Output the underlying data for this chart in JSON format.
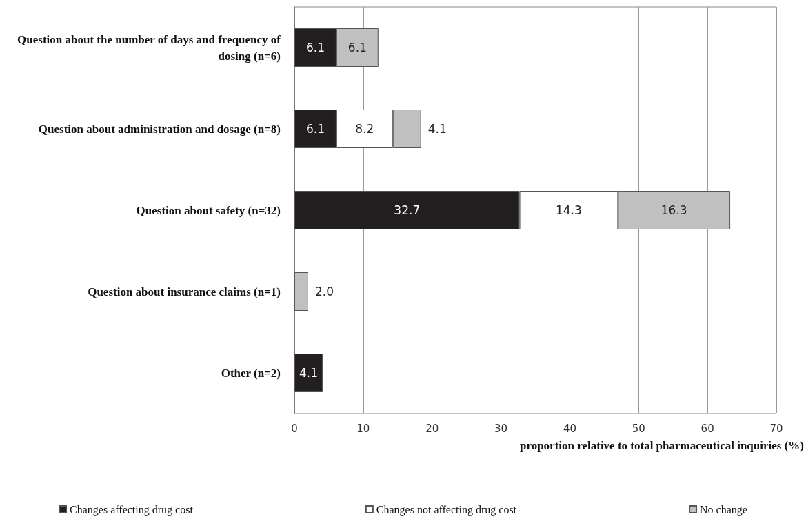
{
  "chart_data": {
    "type": "bar",
    "orientation": "horizontal",
    "stacked": true,
    "categories": [
      "Question about the number of days and frequency of dosing (n=6)",
      "Question about administration and dosage (n=8)",
      "Question about safety (n=32)",
      "Question about insurance claims (n=1)",
      "Other (n=2)"
    ],
    "series": [
      {
        "name": "Changes affecting drug cost",
        "color": "#231f20",
        "values": [
          6.1,
          6.1,
          32.7,
          null,
          4.1
        ],
        "value_labels": [
          "6.1",
          "6.1",
          "32.7",
          null,
          "4.1"
        ]
      },
      {
        "name": "Changes not affecting drug cost",
        "color": "#ffffff",
        "values": [
          null,
          8.2,
          14.3,
          null,
          null
        ],
        "value_labels": [
          null,
          "8.2",
          "14.3",
          null,
          null
        ]
      },
      {
        "name": "No change",
        "color": "#c0c0c0",
        "values": [
          6.1,
          4.1,
          16.3,
          2.0,
          null
        ],
        "value_labels": [
          "6.1",
          "4.1",
          "16.3",
          "2.0",
          null
        ]
      }
    ],
    "xlabel": "proportion relative to total pharmaceutical inquiries (%)",
    "xlim": [
      0,
      70
    ],
    "xticks": [
      0,
      10,
      20,
      30,
      40,
      50,
      60,
      70
    ],
    "grid": "x",
    "legend": "bottom"
  }
}
